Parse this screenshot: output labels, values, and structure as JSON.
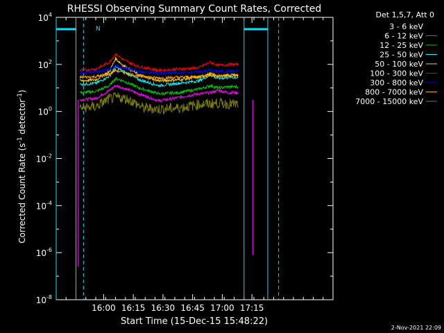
{
  "chart_data": {
    "type": "line",
    "title": "RHESSI Observing Summary Count Rates, Corrected",
    "xlabel": "Start Time (15-Dec-15 15:48:22)",
    "ylabel_main": "Corrected Count Rate (s",
    "ylabel_sup1": "-1",
    "ylabel_mid": " detector",
    "ylabel_sup2": "-1",
    "ylabel_end": ")",
    "y_scale": "log",
    "ylim_exp": [
      -8,
      4
    ],
    "xlim_min": [
      -12,
      128
    ],
    "x_ticks": [
      {
        "min": 12,
        "label": "16:00"
      },
      {
        "min": 27,
        "label": "16:15"
      },
      {
        "min": 42,
        "label": "16:30"
      },
      {
        "min": 57,
        "label": "16:45"
      },
      {
        "min": 72,
        "label": "17:00"
      },
      {
        "min": 87,
        "label": "17:15"
      }
    ],
    "y_ticks": [
      {
        "exp": 4,
        "base": "10",
        "sup": "4"
      },
      {
        "exp": 2,
        "base": "10",
        "sup": "2"
      },
      {
        "exp": 0,
        "base": "10",
        "sup": "0"
      },
      {
        "exp": -2,
        "base": "10",
        "sup": "-2"
      },
      {
        "exp": -4,
        "base": "10",
        "sup": "-4"
      },
      {
        "exp": -6,
        "base": "10",
        "sup": "-6"
      },
      {
        "exp": -8,
        "base": "10",
        "sup": "-8"
      }
    ],
    "legend_title": "Det 1,5,7, Att 0",
    "legend_position": "top-right",
    "series": [
      {
        "name": "3 - 6 keV",
        "color": "#000000",
        "points": [
          [
            0,
            0.4
          ],
          [
            8,
            0.5
          ],
          [
            15,
            0.8
          ],
          [
            20,
            0.85
          ],
          [
            25,
            0.8
          ],
          [
            32,
            0.4
          ],
          [
            40,
            0.3
          ],
          [
            50,
            0.5
          ],
          [
            60,
            0.6
          ],
          [
            70,
            0.6
          ],
          [
            80,
            0.6
          ]
        ]
      },
      {
        "name": "6 - 12 keV",
        "color": "#ff00ff",
        "points": [
          [
            0,
            0.5
          ],
          [
            8,
            0.55
          ],
          [
            15,
            0.9
          ],
          [
            18,
            1.1
          ],
          [
            22,
            1.0
          ],
          [
            30,
            0.75
          ],
          [
            40,
            0.45
          ],
          [
            50,
            0.6
          ],
          [
            60,
            0.75
          ],
          [
            66,
            0.8
          ],
          [
            70,
            0.9
          ],
          [
            75,
            0.8
          ],
          [
            80,
            0.8
          ]
        ]
      },
      {
        "name": "12 - 25 keV",
        "color": "#00cc00",
        "points": [
          [
            0,
            0.8
          ],
          [
            8,
            0.85
          ],
          [
            15,
            1.1
          ],
          [
            18,
            1.4
          ],
          [
            22,
            1.3
          ],
          [
            30,
            1.0
          ],
          [
            40,
            0.75
          ],
          [
            50,
            0.8
          ],
          [
            60,
            0.95
          ],
          [
            66,
            1.1
          ],
          [
            70,
            1.0
          ],
          [
            75,
            1.05
          ],
          [
            80,
            1.05
          ]
        ]
      },
      {
        "name": "25 - 50 keV",
        "color": "#00ffff",
        "points": [
          [
            0,
            1.15
          ],
          [
            8,
            1.2
          ],
          [
            15,
            1.5
          ],
          [
            18,
            1.9
          ],
          [
            22,
            1.7
          ],
          [
            30,
            1.35
          ],
          [
            40,
            1.1
          ],
          [
            50,
            1.2
          ],
          [
            60,
            1.3
          ],
          [
            66,
            1.55
          ],
          [
            70,
            1.4
          ],
          [
            75,
            1.45
          ],
          [
            80,
            1.45
          ]
        ]
      },
      {
        "name": "50 - 100 keV",
        "color": "#ffcc00",
        "points": [
          [
            0,
            1.3
          ],
          [
            8,
            1.35
          ],
          [
            15,
            1.7
          ],
          [
            18,
            2.25
          ],
          [
            22,
            1.95
          ],
          [
            30,
            1.55
          ],
          [
            40,
            1.3
          ],
          [
            50,
            1.35
          ],
          [
            60,
            1.45
          ],
          [
            66,
            1.6
          ],
          [
            70,
            1.5
          ],
          [
            75,
            1.55
          ],
          [
            80,
            1.55
          ]
        ]
      },
      {
        "name": "100 - 300 keV",
        "color": "#ff0000",
        "points": [
          [
            0,
            1.75
          ],
          [
            8,
            1.8
          ],
          [
            15,
            2.1
          ],
          [
            18,
            2.45
          ],
          [
            22,
            2.2
          ],
          [
            30,
            1.9
          ],
          [
            40,
            1.75
          ],
          [
            50,
            1.8
          ],
          [
            60,
            1.85
          ],
          [
            66,
            2.1
          ],
          [
            70,
            1.95
          ],
          [
            75,
            2.0
          ],
          [
            80,
            2.0
          ]
        ]
      },
      {
        "name": "300 - 800 keV",
        "color": "#0000ff",
        "points": [
          [
            0,
            1.65
          ],
          [
            8,
            1.68
          ],
          [
            15,
            1.8
          ],
          [
            18,
            1.95
          ],
          [
            22,
            1.85
          ],
          [
            30,
            1.7
          ],
          [
            40,
            1.62
          ],
          [
            50,
            1.65
          ],
          [
            60,
            1.68
          ],
          [
            66,
            1.75
          ],
          [
            70,
            1.7
          ],
          [
            75,
            1.72
          ],
          [
            80,
            1.72
          ]
        ]
      },
      {
        "name": "800 - 7000 keV",
        "color": "#ffa500",
        "points": [
          [
            0,
            1.45
          ],
          [
            8,
            1.48
          ],
          [
            15,
            1.6
          ],
          [
            18,
            1.75
          ],
          [
            22,
            1.65
          ],
          [
            30,
            1.5
          ],
          [
            40,
            1.42
          ],
          [
            50,
            1.45
          ],
          [
            60,
            1.48
          ],
          [
            66,
            1.55
          ],
          [
            70,
            1.5
          ],
          [
            75,
            1.52
          ],
          [
            80,
            1.52
          ]
        ]
      },
      {
        "name": "7000 - 15000 keV",
        "color": "#808000",
        "points": [
          [
            0,
            0.15
          ],
          [
            8,
            0.2
          ],
          [
            15,
            0.55
          ],
          [
            20,
            0.6
          ],
          [
            25,
            0.5
          ],
          [
            32,
            0.15
          ],
          [
            40,
            0.1
          ],
          [
            50,
            0.15
          ],
          [
            60,
            0.3
          ],
          [
            70,
            0.35
          ],
          [
            80,
            0.3
          ]
        ]
      }
    ],
    "magenta_dropouts": [
      {
        "min": -1,
        "exp": -6.6
      },
      {
        "min": 87.5,
        "exp": -6.1
      }
    ],
    "spacecraft_night": [
      {
        "from": -12,
        "to": -2
      },
      {
        "from": 83,
        "to": 95
      }
    ],
    "saa_lines_min": [
      1.8,
      100.5
    ],
    "night_label": "N",
    "timestamp": "2-Nov-2021 22:09"
  }
}
